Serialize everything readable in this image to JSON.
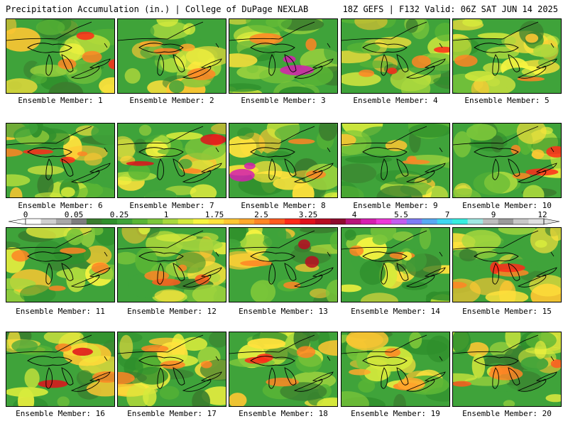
{
  "header": {
    "left_title": "Precipitation Accumulation (in.) | College of DuPage NEXLAB",
    "right_title": "18Z GEFS | F132 Valid: 06Z SAT JUN 14 2025"
  },
  "colorbar": {
    "labels": [
      "0",
      "0.05",
      "0.25",
      "1",
      "1.75",
      "2.5",
      "3.25",
      "4",
      "5.5",
      "7",
      "9",
      "12"
    ],
    "colors": [
      "#ffffff",
      "#cfcfcf",
      "#a8a8a8",
      "#7d7d7d",
      "#3a7d2e",
      "#2f8f2c",
      "#3fa33a",
      "#59b535",
      "#7cc63a",
      "#a9d93e",
      "#d6ea3c",
      "#f7f440",
      "#ffe23c",
      "#ffc632",
      "#ffa82c",
      "#ff8525",
      "#ff5a1f",
      "#ff2a1a",
      "#e0101c",
      "#b80c22",
      "#8f0a2e",
      "#b8157a",
      "#d61eb0",
      "#ee37d8",
      "#c35cf0",
      "#7e7cf6",
      "#58a9f5",
      "#3fd6f2",
      "#37eee0",
      "#9fe7e2",
      "#bdbdbd",
      "#9a9a9a",
      "#c8c8c8",
      "#e0e0e0"
    ]
  },
  "members": [
    {
      "label": "Ensemble Member: 1",
      "field": "green-yellow with red band west, orange patches",
      "accent": "#ff2a1a"
    },
    {
      "label": "Ensemble Member: 2",
      "field": "green-yellow with orange patches",
      "accent": "#ffa82c"
    },
    {
      "label": "Ensemble Member: 3",
      "field": "yellow-orange with red and magenta west",
      "accent": "#d61eb0"
    },
    {
      "label": "Ensemble Member: 4",
      "field": "yellow-green with red band west",
      "accent": "#ff2a1a"
    },
    {
      "label": "Ensemble Member: 5",
      "field": "mostly green with yellow patches",
      "accent": "#d6ea3c"
    },
    {
      "label": "Ensemble Member: 6",
      "field": "green with red north",
      "accent": "#ff2a1a"
    },
    {
      "label": "Ensemble Member: 7",
      "field": "yellow-orange with red band south",
      "accent": "#e0101c"
    },
    {
      "label": "Ensemble Member: 8",
      "field": "green with red and magenta west",
      "accent": "#d61eb0"
    },
    {
      "label": "Ensemble Member: 9",
      "field": "green with yellow east",
      "accent": "#ffc632"
    },
    {
      "label": "Ensemble Member: 10",
      "field": "yellow-green with red patches",
      "accent": "#ff2a1a"
    },
    {
      "label": "Ensemble Member: 11",
      "field": "yellow-green with orange west",
      "accent": "#ff8525"
    },
    {
      "label": "Ensemble Member: 12",
      "field": "green-yellow with orange north",
      "accent": "#ff5a1f"
    },
    {
      "label": "Ensemble Member: 13",
      "field": "yellow-orange with red southeast",
      "accent": "#b80c22"
    },
    {
      "label": "Ensemble Member: 14",
      "field": "green with yellow patches",
      "accent": "#f7f440"
    },
    {
      "label": "Ensemble Member: 15",
      "field": "yellow-green with red west",
      "accent": "#ff2a1a"
    },
    {
      "label": "Ensemble Member: 16",
      "field": "green with red band west",
      "accent": "#e0101c"
    },
    {
      "label": "Ensemble Member: 17",
      "field": "green-yellow with orange patches",
      "accent": "#ff8525"
    },
    {
      "label": "Ensemble Member: 18",
      "field": "yellow with red southwest",
      "accent": "#ff2a1a"
    },
    {
      "label": "Ensemble Member: 19",
      "field": "yellow-green with orange patches",
      "accent": "#ffa82c"
    },
    {
      "label": "Ensemble Member: 20",
      "field": "yellow-green with orange band",
      "accent": "#ff5a1f"
    }
  ]
}
